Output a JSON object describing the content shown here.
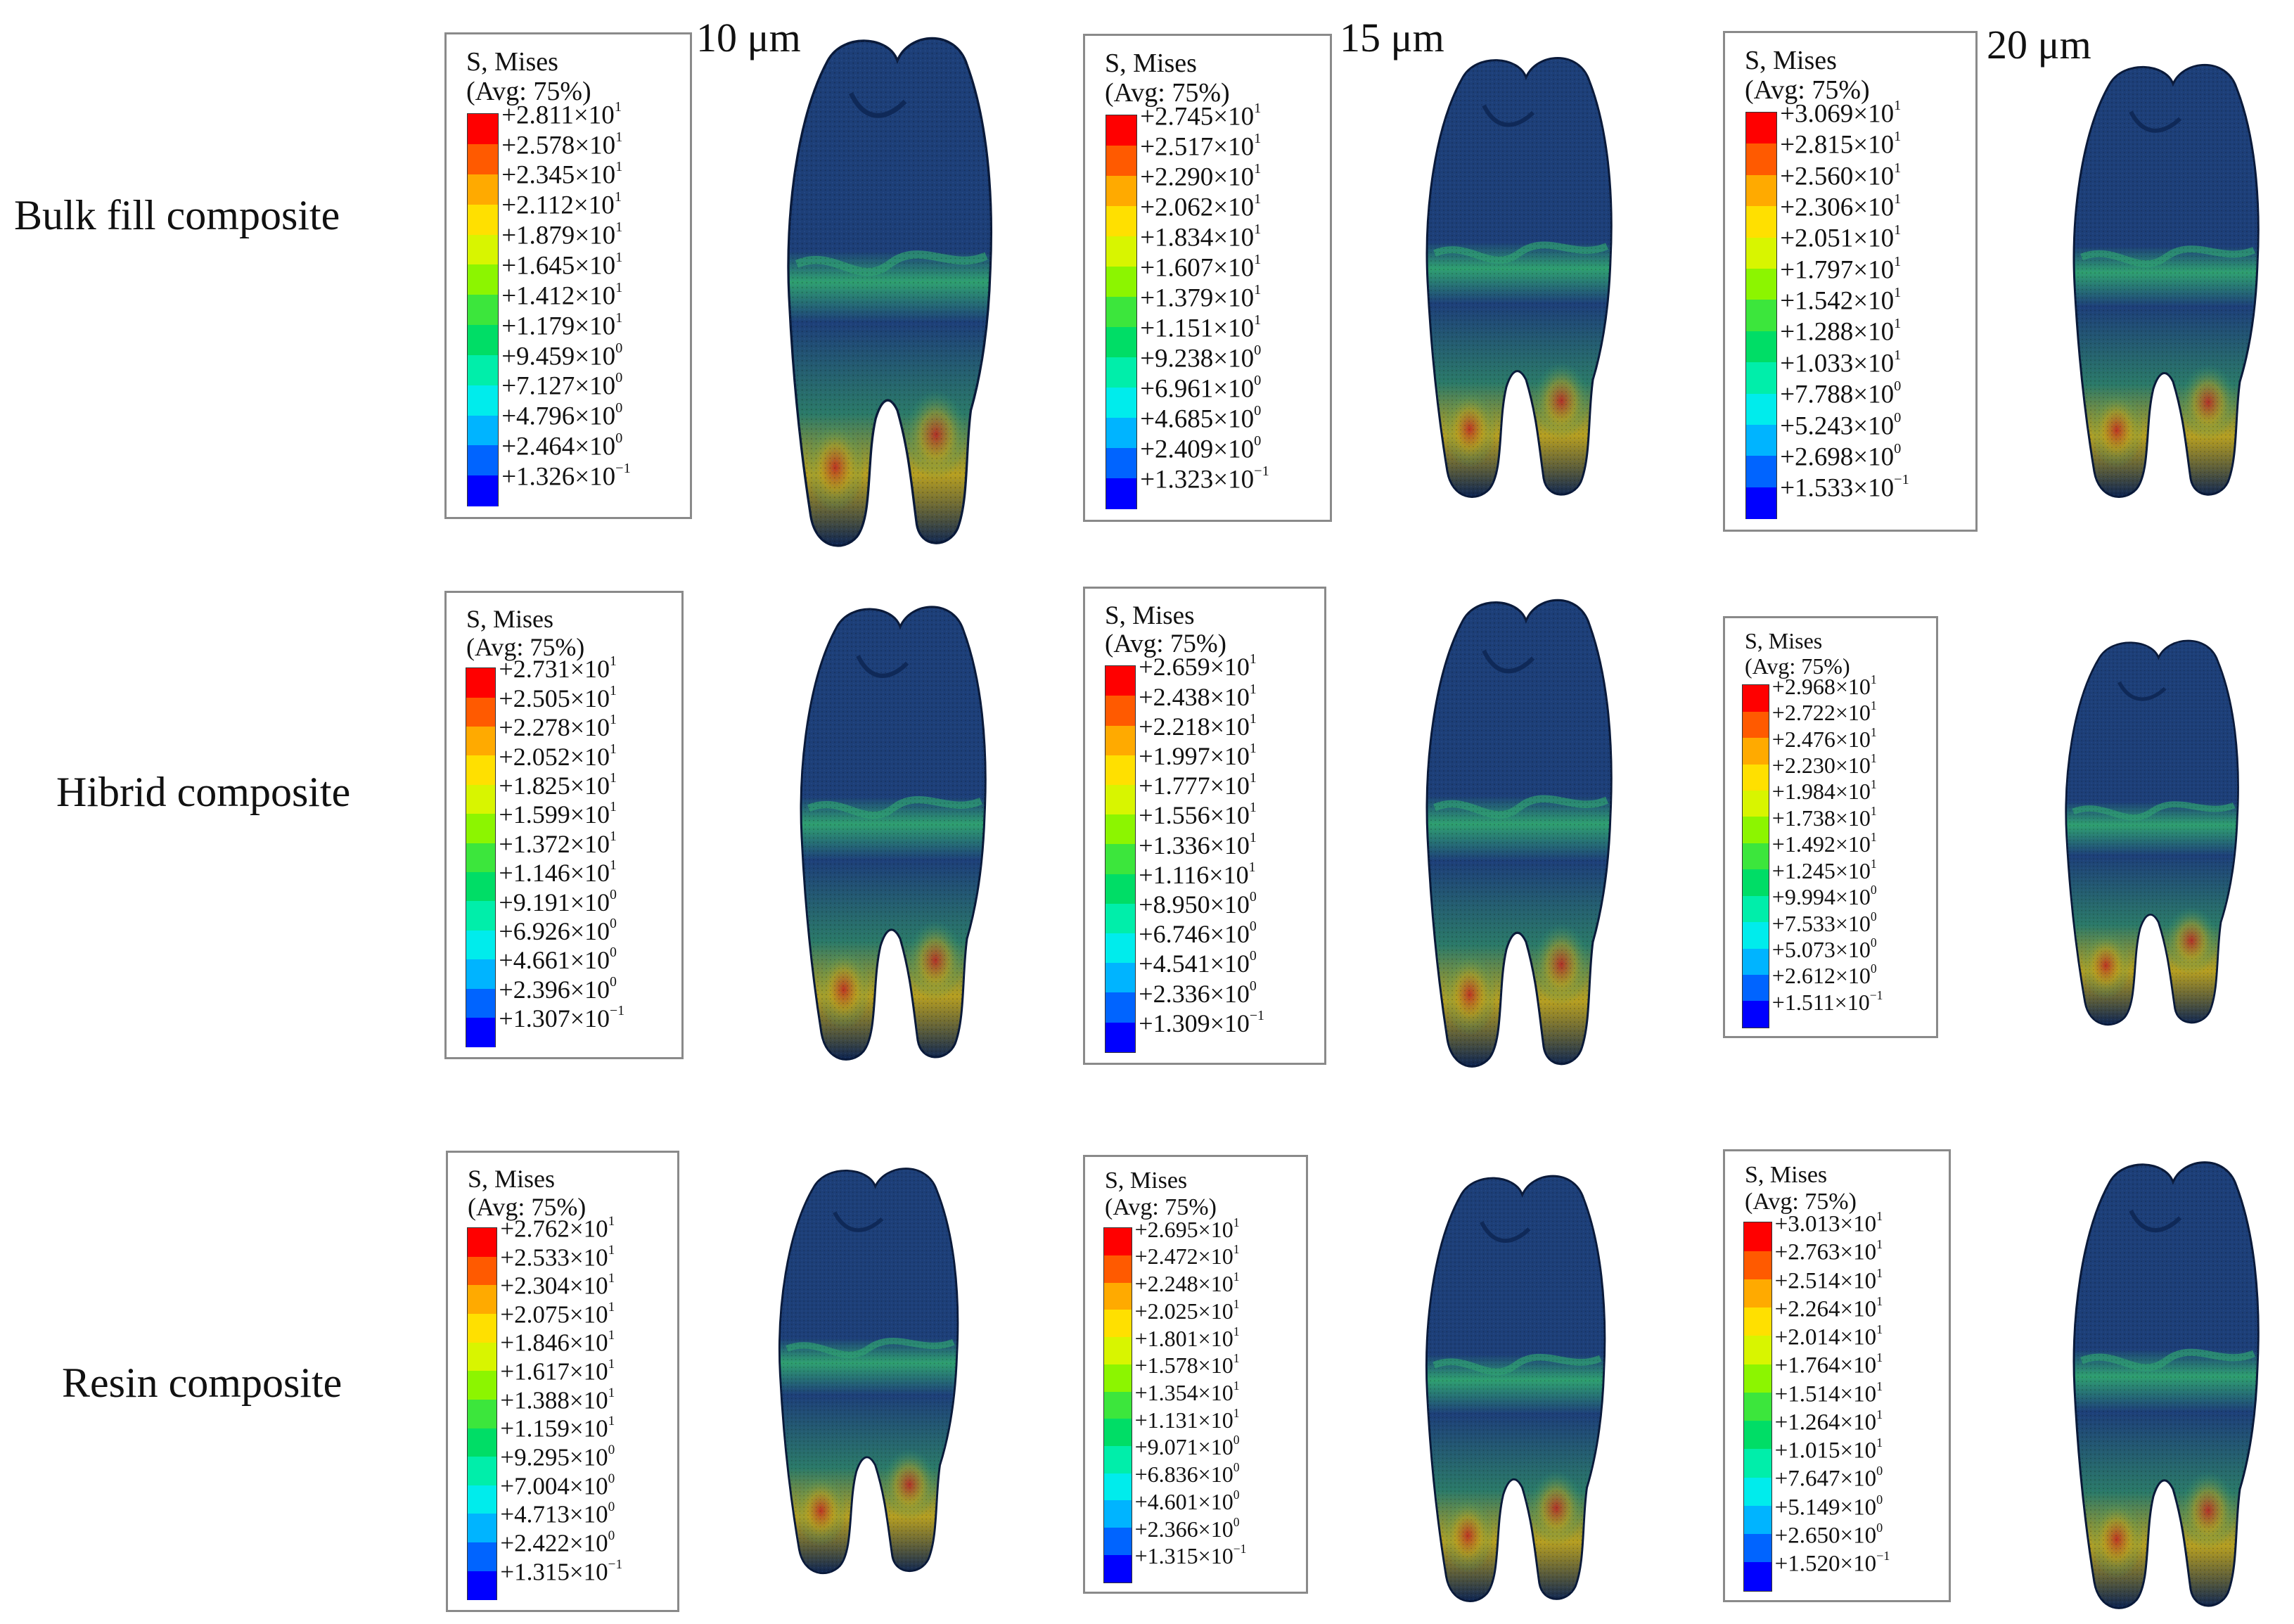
{
  "columns": [
    "10 μm",
    "15 μm",
    "20 μm"
  ],
  "rows": [
    "Bulk fill composite",
    "Hibrid composite",
    "Resin composite"
  ],
  "legend_title_line1": "S, Mises",
  "legend_title_line2": "(Avg: 75%)",
  "times_sign": "×",
  "colormap": [
    "#ff0000",
    "#ff5a00",
    "#ffaa00",
    "#ffe000",
    "#d8f500",
    "#8cf500",
    "#3ce63c",
    "#00dd66",
    "#00eeaa",
    "#00ecec",
    "#00b4ff",
    "#0064ff",
    "#0000ff"
  ],
  "tooth_colors": {
    "base": "#1d3f78",
    "shade": "#0d2450",
    "edge": "#0a1a3a",
    "band": "#2fa070",
    "hot": "#b8a020",
    "red": "#c02020"
  },
  "legends": [
    [
      {
        "row": "Bulk fill composite",
        "column": "10 μm",
        "values": [
          "+2.811",
          "+2.578",
          "+2.345",
          "+2.112",
          "+1.879",
          "+1.645",
          "+1.412",
          "+1.179",
          "+9.459",
          "+7.127",
          "+4.796",
          "+2.464",
          "+1.326"
        ],
        "exponents": [
          "1",
          "1",
          "1",
          "1",
          "1",
          "1",
          "1",
          "1",
          "0",
          "0",
          "0",
          "0",
          "−1"
        ]
      },
      {
        "row": "Bulk fill composite",
        "column": "15 μm",
        "values": [
          "+2.745",
          "+2.517",
          "+2.290",
          "+2.062",
          "+1.834",
          "+1.607",
          "+1.379",
          "+1.151",
          "+9.238",
          "+6.961",
          "+4.685",
          "+2.409",
          "+1.323"
        ],
        "exponents": [
          "1",
          "1",
          "1",
          "1",
          "1",
          "1",
          "1",
          "1",
          "0",
          "0",
          "0",
          "0",
          "−1"
        ]
      },
      {
        "row": "Bulk fill composite",
        "column": "20 μm",
        "values": [
          "+3.069",
          "+2.815",
          "+2.560",
          "+2.306",
          "+2.051",
          "+1.797",
          "+1.542",
          "+1.288",
          "+1.033",
          "+7.788",
          "+5.243",
          "+2.698",
          "+1.533"
        ],
        "exponents": [
          "1",
          "1",
          "1",
          "1",
          "1",
          "1",
          "1",
          "1",
          "1",
          "0",
          "0",
          "0",
          "−1"
        ]
      }
    ],
    [
      {
        "row": "Hibrid composite",
        "column": "10 μm",
        "values": [
          "+2.731",
          "+2.505",
          "+2.278",
          "+2.052",
          "+1.825",
          "+1.599",
          "+1.372",
          "+1.146",
          "+9.191",
          "+6.926",
          "+4.661",
          "+2.396",
          "+1.307"
        ],
        "exponents": [
          "1",
          "1",
          "1",
          "1",
          "1",
          "1",
          "1",
          "1",
          "0",
          "0",
          "0",
          "0",
          "−1"
        ]
      },
      {
        "row": "Hibrid composite",
        "column": "15 μm",
        "values": [
          "+2.659",
          "+2.438",
          "+2.218",
          "+1.997",
          "+1.777",
          "+1.556",
          "+1.336",
          "+1.116",
          "+8.950",
          "+6.746",
          "+4.541",
          "+2.336",
          "+1.309"
        ],
        "exponents": [
          "1",
          "1",
          "1",
          "1",
          "1",
          "1",
          "1",
          "1",
          "0",
          "0",
          "0",
          "0",
          "−1"
        ]
      },
      {
        "row": "Hibrid composite",
        "column": "20 μm",
        "values": [
          "+2.968",
          "+2.722",
          "+2.476",
          "+2.230",
          "+1.984",
          "+1.738",
          "+1.492",
          "+1.245",
          "+9.994",
          "+7.533",
          "+5.073",
          "+2.612",
          "+1.511"
        ],
        "exponents": [
          "1",
          "1",
          "1",
          "1",
          "1",
          "1",
          "1",
          "1",
          "0",
          "0",
          "0",
          "0",
          "−1"
        ]
      }
    ],
    [
      {
        "row": "Resin composite",
        "column": "10 μm",
        "values": [
          "+2.762",
          "+2.533",
          "+2.304",
          "+2.075",
          "+1.846",
          "+1.617",
          "+1.388",
          "+1.159",
          "+9.295",
          "+7.004",
          "+4.713",
          "+2.422",
          "+1.315"
        ],
        "exponents": [
          "1",
          "1",
          "1",
          "1",
          "1",
          "1",
          "1",
          "1",
          "0",
          "0",
          "0",
          "0",
          "−1"
        ]
      },
      {
        "row": "Resin composite",
        "column": "15 μm",
        "values": [
          "+2.695",
          "+2.472",
          "+2.248",
          "+2.025",
          "+1.801",
          "+1.578",
          "+1.354",
          "+1.131",
          "+9.071",
          "+6.836",
          "+4.601",
          "+2.366",
          "+1.315"
        ],
        "exponents": [
          "1",
          "1",
          "1",
          "1",
          "1",
          "1",
          "1",
          "1",
          "0",
          "0",
          "0",
          "0",
          "−1"
        ]
      },
      {
        "row": "Resin composite",
        "column": "20 μm",
        "values": [
          "+3.013",
          "+2.763",
          "+2.514",
          "+2.264",
          "+2.014",
          "+1.764",
          "+1.514",
          "+1.264",
          "+1.015",
          "+7.647",
          "+5.149",
          "+2.650",
          "+1.520"
        ],
        "exponents": [
          "1",
          "1",
          "1",
          "1",
          "1",
          "1",
          "1",
          "1",
          "1",
          "0",
          "0",
          "0",
          "−1"
        ]
      }
    ]
  ]
}
